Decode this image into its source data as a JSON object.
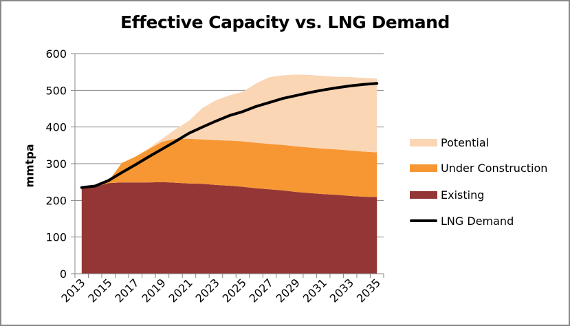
{
  "chart_data": {
    "type": "area",
    "title": "Effective Capacity vs. LNG Demand",
    "xlabel": "",
    "ylabel": "mmtpa",
    "ylim": [
      0,
      600
    ],
    "yticks": [
      0,
      100,
      200,
      300,
      400,
      500,
      600
    ],
    "grid": true,
    "legend_position": "right",
    "categories": [
      "2013",
      "2014",
      "2015",
      "2016",
      "2017",
      "2018",
      "2019",
      "2020",
      "2021",
      "2022",
      "2023",
      "2024",
      "2025",
      "2026",
      "2027",
      "2028",
      "2029",
      "2030",
      "2031",
      "2032",
      "2033",
      "2034",
      "2035"
    ],
    "xtick_labels": [
      "2013",
      "2015",
      "2017",
      "2019",
      "2021",
      "2023",
      "2025",
      "2027",
      "2029",
      "2031",
      "2033",
      "2035"
    ],
    "stacked": true,
    "series": [
      {
        "name": "Existing",
        "kind": "stacked-area",
        "color": "#943636",
        "values": [
          233,
          237,
          247,
          249,
          249,
          249,
          250,
          248,
          246,
          245,
          242,
          240,
          237,
          233,
          230,
          227,
          223,
          220,
          217,
          215,
          212,
          210,
          209
        ]
      },
      {
        "name": "Under Construction",
        "kind": "stacked-area",
        "color": "#F79733",
        "values": [
          0,
          0,
          6,
          53,
          70,
          91,
          110,
          120,
          122,
          121,
          122,
          123,
          124,
          124,
          124,
          124,
          124,
          124,
          124,
          124,
          124,
          123,
          122
        ]
      },
      {
        "name": "Potential",
        "kind": "stacked-area",
        "color": "#FAD6B5",
        "values": [
          0,
          0,
          0,
          0,
          0,
          2,
          8,
          26,
          49,
          86,
          109,
          123,
          135,
          162,
          182,
          190,
          196,
          198,
          198,
          198,
          200,
          201,
          201
        ]
      },
      {
        "name": "LNG Demand",
        "kind": "line",
        "color": "#000000",
        "values": [
          235,
          239,
          254,
          276,
          297,
          319,
          340,
          361,
          383,
          400,
          416,
          431,
          442,
          456,
          467,
          478,
          486,
          494,
          501,
          507,
          512,
          516,
          519
        ]
      }
    ]
  },
  "legend": {
    "items": [
      {
        "label": "Potential",
        "color": "#FAD6B5",
        "type": "area"
      },
      {
        "label": "Under Construction",
        "color": "#F79733",
        "type": "area"
      },
      {
        "label": "Existing",
        "color": "#943636",
        "type": "area"
      },
      {
        "label": "LNG Demand",
        "color": "#000000",
        "type": "line"
      }
    ]
  }
}
